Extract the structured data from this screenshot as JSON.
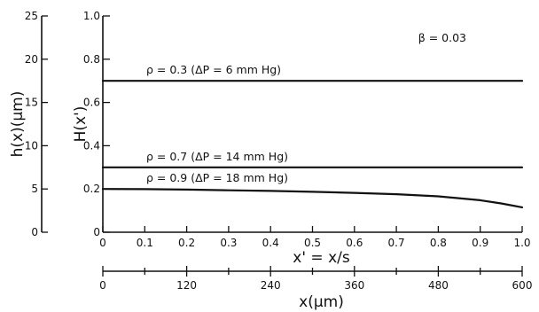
{
  "chart_data": {
    "type": "line",
    "x_label": "x' = x/s",
    "x_ticks": [
      "0",
      "0.1",
      "0.2",
      "0.3",
      "0.4",
      "0.5",
      "0.6",
      "0.7",
      "0.8",
      "0.9",
      "1.0"
    ],
    "xlim": [
      0,
      1
    ],
    "x2_label": "x(μm)",
    "x2_ticks": [
      "0",
      "120",
      "240",
      "360",
      "480",
      "600"
    ],
    "x2_lim": [
      0,
      600
    ],
    "y_label": "H(x')",
    "y_ticks": [
      "0",
      "0.2",
      "0.4",
      "0.6",
      "0.8",
      "1.0"
    ],
    "ylim": [
      0,
      1
    ],
    "y2_label": "h(x)(μm)",
    "y2_ticks": [
      "0",
      "5",
      "10",
      "15",
      "20",
      "25"
    ],
    "y2_lim": [
      0,
      25
    ],
    "grid": false,
    "annotation": "β = 0.03",
    "series": [
      {
        "name": "ρ = 0.3 (ΔP = 6 mm Hg)",
        "x": [
          0,
          0.1,
          0.2,
          0.3,
          0.4,
          0.5,
          0.6,
          0.7,
          0.8,
          0.9,
          1.0
        ],
        "values": [
          0.7,
          0.7,
          0.7,
          0.7,
          0.7,
          0.7,
          0.7,
          0.7,
          0.7,
          0.7,
          0.7
        ]
      },
      {
        "name": "ρ = 0.7 (ΔP = 14 mm Hg)",
        "x": [
          0,
          0.1,
          0.2,
          0.3,
          0.4,
          0.5,
          0.6,
          0.7,
          0.8,
          0.9,
          1.0
        ],
        "values": [
          0.3,
          0.3,
          0.3,
          0.3,
          0.3,
          0.3,
          0.3,
          0.3,
          0.3,
          0.3,
          0.3
        ]
      },
      {
        "name": "ρ = 0.9 (ΔP = 18 mm Hg)",
        "x": [
          0,
          0.1,
          0.2,
          0.3,
          0.4,
          0.5,
          0.6,
          0.7,
          0.8,
          0.9,
          0.95,
          1.0
        ],
        "values": [
          0.2,
          0.199,
          0.197,
          0.194,
          0.191,
          0.187,
          0.182,
          0.176,
          0.166,
          0.148,
          0.133,
          0.115
        ]
      }
    ]
  }
}
